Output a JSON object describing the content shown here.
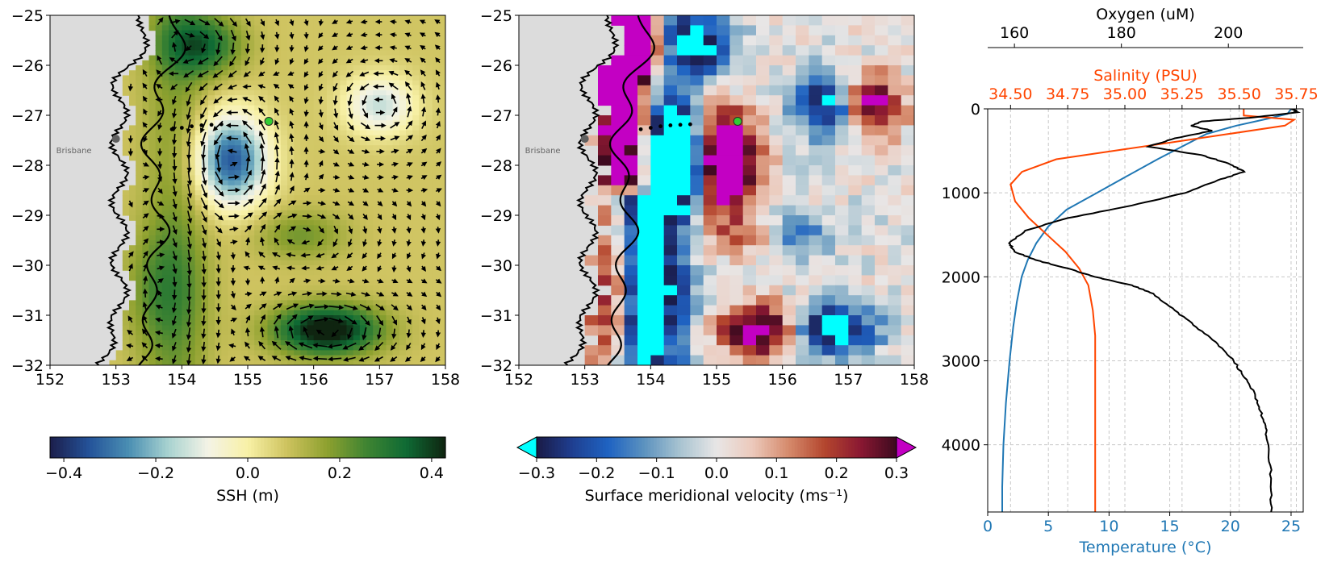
{
  "chart_data": [
    {
      "type": "heatmap",
      "name": "ssh-map",
      "xlim": [
        152,
        158
      ],
      "ylim": [
        -32,
        -25
      ],
      "xticks": [
        152,
        153,
        154,
        155,
        156,
        157,
        158
      ],
      "yticks": [
        -25,
        -26,
        -27,
        -28,
        -29,
        -30,
        -31,
        -32
      ],
      "place_label": "Brisbane",
      "place_point": [
        153.0,
        -27.47
      ],
      "station_point": [
        155.32,
        -27.12
      ],
      "section_points": [
        [
          153.85,
          -27.28
        ],
        [
          154.0,
          -27.25
        ],
        [
          154.15,
          -27.22
        ],
        [
          154.3,
          -27.2
        ],
        [
          154.45,
          -27.19
        ],
        [
          154.6,
          -27.18
        ]
      ],
      "colorbar": {
        "label": "SSH (m)",
        "range": [
          -0.43,
          0.43
        ],
        "ticks": [
          -0.4,
          -0.2,
          0.0,
          0.2,
          0.4
        ],
        "tick_labels": [
          "−0.4",
          "−0.2",
          "0.0",
          "0.2",
          "0.4"
        ],
        "colormap": [
          "#1c1e4b",
          "#24539a",
          "#4b8fb3",
          "#a9d3d0",
          "#f4f3e6",
          "#f8f1a6",
          "#cdc25e",
          "#8ea12f",
          "#3f8432",
          "#0f6b34",
          "#0f2410"
        ]
      },
      "eddies": [
        {
          "lon": 154.75,
          "lat": -27.9,
          "amp": -0.42,
          "sx": 0.55,
          "sy": 0.9,
          "rot": -1
        },
        {
          "lon": 157.0,
          "lat": -26.8,
          "amp": -0.22,
          "sx": 0.55,
          "sy": 0.6,
          "rot": -1
        },
        {
          "lon": 156.2,
          "lat": -31.3,
          "amp": 0.4,
          "sx": 0.8,
          "sy": 0.5,
          "rot": 1
        },
        {
          "lon": 155.8,
          "lat": -29.4,
          "amp": 0.12,
          "sx": 0.7,
          "sy": 0.5,
          "rot": 1
        },
        {
          "lon": 153.7,
          "lat": -30.5,
          "amp": 0.12,
          "sx": 0.6,
          "sy": 1.2,
          "rot": 1
        },
        {
          "lon": 154.3,
          "lat": -25.6,
          "amp": 0.25,
          "sx": 0.6,
          "sy": 0.6,
          "rot": 1
        }
      ]
    },
    {
      "type": "heatmap",
      "name": "velocity-map",
      "xlim": [
        152,
        158
      ],
      "ylim": [
        -32,
        -25
      ],
      "xticks": [
        152,
        153,
        154,
        155,
        156,
        157,
        158
      ],
      "yticks": [
        -25,
        -26,
        -27,
        -28,
        -29,
        -30,
        -31,
        -32
      ],
      "place_label": "Brisbane",
      "place_point": [
        153.0,
        -27.47
      ],
      "station_point": [
        155.32,
        -27.12
      ],
      "section_points": [
        [
          153.85,
          -27.28
        ],
        [
          154.0,
          -27.25
        ],
        [
          154.15,
          -27.22
        ],
        [
          154.3,
          -27.2
        ],
        [
          154.45,
          -27.19
        ],
        [
          154.6,
          -27.18
        ]
      ],
      "colorbar": {
        "label": "Surface meridional velocity (ms⁻¹)",
        "range": [
          -0.3,
          0.3
        ],
        "ticks": [
          -0.3,
          -0.2,
          -0.1,
          0.0,
          0.1,
          0.2,
          0.3
        ],
        "tick_labels": [
          "−0.3",
          "−0.2",
          "−0.1",
          "0.0",
          "0.1",
          "0.2",
          "0.3"
        ],
        "colormap": [
          "#1a1a46",
          "#1f3f91",
          "#1f63c2",
          "#5d93bf",
          "#a9c4d1",
          "#e8e6e6",
          "#ecc9bb",
          "#d58a6c",
          "#b4462e",
          "#8a1832",
          "#3c0a1f"
        ],
        "under_color": "#00ffff",
        "over_color": "#c300c3"
      }
    },
    {
      "type": "line",
      "name": "depth-profile",
      "ylim": [
        4800,
        0
      ],
      "yticks": [
        0,
        1000,
        2000,
        3000,
        4000
      ],
      "temperature": {
        "label": "Temperature (°C)",
        "xlim": [
          0,
          26
        ],
        "ticks": [
          0,
          5,
          10,
          15,
          20,
          25
        ],
        "color": "#1f77b4",
        "points": [
          [
            25.0,
            0
          ],
          [
            24.7,
            60
          ],
          [
            23.0,
            120
          ],
          [
            20.5,
            200
          ],
          [
            18.0,
            300
          ],
          [
            16.0,
            450
          ],
          [
            14.0,
            600
          ],
          [
            11.5,
            800
          ],
          [
            9.0,
            1000
          ],
          [
            6.5,
            1200
          ],
          [
            5.0,
            1400
          ],
          [
            4.0,
            1600
          ],
          [
            3.3,
            1800
          ],
          [
            2.8,
            2000
          ],
          [
            2.4,
            2300
          ],
          [
            2.1,
            2600
          ],
          [
            1.8,
            3000
          ],
          [
            1.5,
            3500
          ],
          [
            1.3,
            4000
          ],
          [
            1.2,
            4500
          ],
          [
            1.2,
            4800
          ]
        ]
      },
      "salinity": {
        "label": "Salinity (PSU)",
        "xlim": [
          34.4,
          35.78
        ],
        "ticks": [
          34.5,
          34.75,
          35.0,
          35.25,
          35.5,
          35.75
        ],
        "tick_labels": [
          "34.50",
          "34.75",
          "35.00",
          "35.25",
          "35.50",
          "35.75"
        ],
        "color": "#ff4500",
        "points": [
          [
            35.52,
            0
          ],
          [
            35.52,
            80
          ],
          [
            35.74,
            130
          ],
          [
            35.7,
            200
          ],
          [
            35.45,
            300
          ],
          [
            35.2,
            400
          ],
          [
            34.95,
            500
          ],
          [
            34.7,
            600
          ],
          [
            34.55,
            750
          ],
          [
            34.5,
            900
          ],
          [
            34.52,
            1100
          ],
          [
            34.58,
            1300
          ],
          [
            34.66,
            1500
          ],
          [
            34.74,
            1700
          ],
          [
            34.8,
            1900
          ],
          [
            34.84,
            2100
          ],
          [
            34.86,
            2400
          ],
          [
            34.87,
            2700
          ],
          [
            34.87,
            3000
          ],
          [
            34.87,
            3500
          ],
          [
            34.87,
            4000
          ],
          [
            34.87,
            4800
          ]
        ]
      },
      "oxygen": {
        "label": "Oxygen (uM)",
        "xlim": [
          155,
          214
        ],
        "ticks": [
          160,
          180,
          200
        ],
        "color": "#000000",
        "points": [
          [
            212,
            0
          ],
          [
            213,
            40
          ],
          [
            205,
            100
          ],
          [
            195,
            150
          ],
          [
            193,
            200
          ],
          [
            197,
            260
          ],
          [
            190,
            350
          ],
          [
            185,
            450
          ],
          [
            195,
            550
          ],
          [
            200,
            650
          ],
          [
            203,
            750
          ],
          [
            198,
            850
          ],
          [
            192,
            1000
          ],
          [
            182,
            1150
          ],
          [
            170,
            1300
          ],
          [
            162,
            1450
          ],
          [
            159,
            1600
          ],
          [
            160,
            1700
          ],
          [
            164,
            1800
          ],
          [
            170,
            1900
          ],
          [
            175,
            2000
          ],
          [
            182,
            2100
          ],
          [
            186,
            2200
          ],
          [
            190,
            2400
          ],
          [
            194,
            2600
          ],
          [
            198,
            2800
          ],
          [
            201,
            3000
          ],
          [
            203,
            3200
          ],
          [
            205,
            3400
          ],
          [
            206,
            3600
          ],
          [
            207,
            3800
          ],
          [
            207.5,
            4000
          ],
          [
            208,
            4400
          ],
          [
            208,
            4800
          ]
        ]
      }
    }
  ]
}
